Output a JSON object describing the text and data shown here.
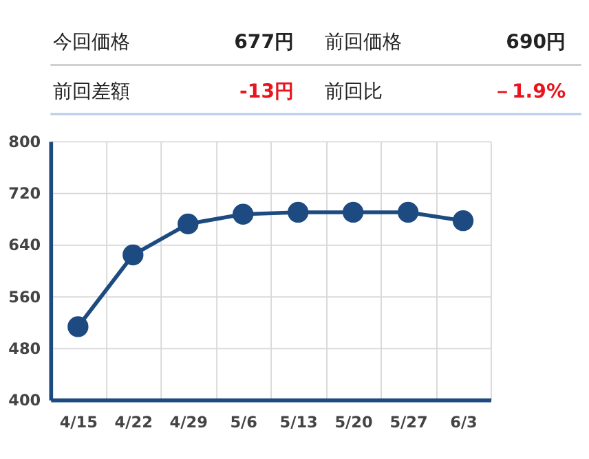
{
  "chart_data": [
    {
      "type": "other",
      "annotations": [
        "今回価格",
        "677円",
        "前回価格",
        "690円",
        "前回差額",
        "-13円",
        "前回比",
        "－1.9%"
      ]
    },
    {
      "type": "line",
      "categories": [
        "4/15",
        "4/22",
        "4/29",
        "5/6",
        "5/13",
        "5/20",
        "5/27",
        "6/3"
      ],
      "series": [
        {
          "color": "#1d4a80",
          "values": [
            513,
            624,
            672,
            687,
            690,
            690,
            690,
            677
          ]
        }
      ],
      "ylim": [
        400,
        800
      ],
      "yticks": [
        400,
        480,
        560,
        640,
        720,
        800
      ],
      "grid": true,
      "marker": "circle",
      "line_style": "solid"
    }
  ]
}
